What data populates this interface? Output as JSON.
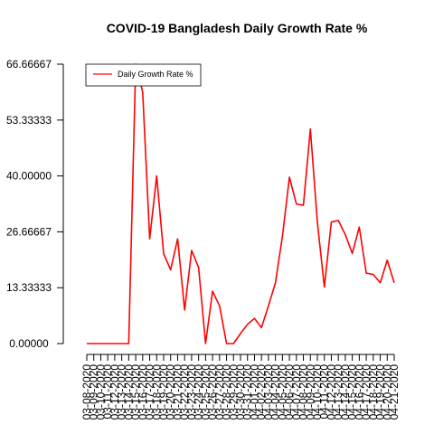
{
  "chart_data": {
    "type": "line",
    "title": "COVID-19 Bangladesh Daily Growth Rate %",
    "xlabel": "",
    "ylabel": "",
    "legend_position": "top-left",
    "grid": false,
    "series_color": "#ff0000",
    "ylim": [
      0,
      66.66667
    ],
    "y_ticks": [
      "0.00000",
      "13.33333",
      "26.66667",
      "40.00000",
      "53.33333",
      "66.66667"
    ],
    "x_tick_labels": [
      "03-08-2020",
      "03-09-2020",
      "03-10-2020",
      "03-11-2020",
      "03-12-2020",
      "03-13-2020",
      "03-14-2020",
      "03-15-2020",
      "03-16-2020",
      "03-17-2020",
      "03-18-2020",
      "03-19-2020",
      "03-20-2020",
      "03-21-2020",
      "03-22-2020",
      "03-23-2020",
      "03-24-2020",
      "03-25-2020",
      "03-26-2020",
      "03-27-2020",
      "03-28-2020",
      "03-29-2020",
      "03-30-2020",
      "03-31-2020",
      "04-01-2020",
      "04-02-2020",
      "04-03-2020",
      "04-04-2020",
      "04-05-2020",
      "04-06-2020",
      "04-07-2020",
      "04-08-2020",
      "04-09-2020",
      "04-10-2020",
      "04-11-2020",
      "04-12-2020",
      "04-13-2020",
      "04-14-2020",
      "04-15-2020",
      "04-16-2020",
      "04-17-2020",
      "04-18-2020",
      "04-19-2020",
      "04-20-2020",
      "04-21-2020"
    ],
    "series": [
      {
        "name": "Daily Growth Rate %",
        "values": [
          0,
          0,
          0,
          0,
          0,
          0,
          0,
          66.67,
          60,
          25,
          40,
          21.4,
          17.6,
          25,
          8,
          22.2,
          18.2,
          0,
          12.5,
          9,
          0,
          0,
          2.4,
          4.6,
          6,
          3.8,
          9,
          14.5,
          25.6,
          39.7,
          33.3,
          33,
          51.2,
          29,
          13.5,
          29,
          29.4,
          26,
          21.5,
          27.8,
          16.8,
          16.5,
          14.5,
          19.9,
          14.5
        ]
      }
    ]
  }
}
